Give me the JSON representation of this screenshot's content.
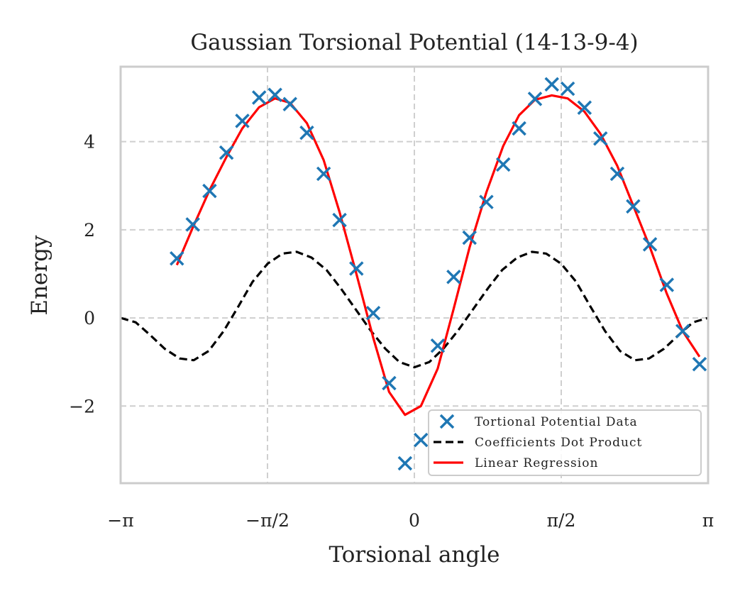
{
  "chart_data": {
    "type": "line",
    "title": "Gaussian Torsional Potential (14-13-9-4)",
    "xlabel": "Torsional angle",
    "ylabel": "Energy",
    "xlim": [
      -3.1416,
      3.1416
    ],
    "ylim": [
      -3.75,
      5.7
    ],
    "grid": true,
    "legend_position": "bottom-right",
    "x_ticks": [
      {
        "value": -3.1416,
        "label": "−π"
      },
      {
        "value": -1.5708,
        "label": "−π/2"
      },
      {
        "value": 0,
        "label": "0"
      },
      {
        "value": 1.5708,
        "label": "π/2"
      },
      {
        "value": 3.1416,
        "label": "π"
      }
    ],
    "y_ticks": [
      {
        "value": -2,
        "label": "−2"
      },
      {
        "value": 0,
        "label": "0"
      },
      {
        "value": 2,
        "label": "2"
      },
      {
        "value": 4,
        "label": "4"
      }
    ],
    "series": [
      {
        "name": "Tortional Potential Data",
        "kind": "scatter",
        "marker": "x",
        "color": "#1f77b4",
        "points": [
          [
            -2.54,
            1.35
          ],
          [
            -2.37,
            2.12
          ],
          [
            -2.19,
            2.88
          ],
          [
            -2.01,
            3.75
          ],
          [
            -1.84,
            4.47
          ],
          [
            -1.66,
            5.0
          ],
          [
            -1.49,
            5.06
          ],
          [
            -1.33,
            4.85
          ],
          [
            -1.15,
            4.2
          ],
          [
            -0.97,
            3.27
          ],
          [
            -0.8,
            2.22
          ],
          [
            -0.62,
            1.12
          ],
          [
            -0.44,
            0.11
          ],
          [
            -0.27,
            -1.48
          ],
          [
            -0.1,
            -3.3
          ],
          [
            0.07,
            -2.77
          ],
          [
            0.25,
            -0.63
          ],
          [
            0.42,
            0.93
          ],
          [
            0.59,
            1.82
          ],
          [
            0.77,
            2.63
          ],
          [
            0.95,
            3.48
          ],
          [
            1.12,
            4.3
          ],
          [
            1.29,
            4.97
          ],
          [
            1.47,
            5.3
          ],
          [
            1.64,
            5.2
          ],
          [
            1.82,
            4.77
          ],
          [
            1.99,
            4.07
          ],
          [
            2.17,
            3.27
          ],
          [
            2.34,
            2.53
          ],
          [
            2.52,
            1.67
          ],
          [
            2.7,
            0.75
          ],
          [
            2.87,
            -0.3
          ],
          [
            3.05,
            -1.05
          ]
        ]
      },
      {
        "name": "Coefficients Dot Product",
        "kind": "line",
        "style": "dashed",
        "color": "#000000",
        "points": [
          [
            -3.14,
            0.0
          ],
          [
            -2.98,
            -0.1
          ],
          [
            -2.83,
            -0.38
          ],
          [
            -2.67,
            -0.7
          ],
          [
            -2.51,
            -0.92
          ],
          [
            -2.36,
            -0.96
          ],
          [
            -2.2,
            -0.75
          ],
          [
            -2.04,
            -0.3
          ],
          [
            -1.88,
            0.27
          ],
          [
            -1.73,
            0.82
          ],
          [
            -1.57,
            1.23
          ],
          [
            -1.41,
            1.46
          ],
          [
            -1.26,
            1.5
          ],
          [
            -1.1,
            1.37
          ],
          [
            -0.94,
            1.09
          ],
          [
            -0.79,
            0.68
          ],
          [
            -0.63,
            0.2
          ],
          [
            -0.47,
            -0.28
          ],
          [
            -0.31,
            -0.7
          ],
          [
            -0.16,
            -1.0
          ],
          [
            0.0,
            -1.12
          ],
          [
            0.16,
            -1.0
          ],
          [
            0.31,
            -0.7
          ],
          [
            0.47,
            -0.28
          ],
          [
            0.63,
            0.2
          ],
          [
            0.79,
            0.68
          ],
          [
            0.94,
            1.09
          ],
          [
            1.1,
            1.37
          ],
          [
            1.26,
            1.5
          ],
          [
            1.41,
            1.46
          ],
          [
            1.57,
            1.23
          ],
          [
            1.73,
            0.82
          ],
          [
            1.88,
            0.27
          ],
          [
            2.04,
            -0.3
          ],
          [
            2.2,
            -0.75
          ],
          [
            2.36,
            -0.96
          ],
          [
            2.51,
            -0.92
          ],
          [
            2.67,
            -0.7
          ],
          [
            2.83,
            -0.38
          ],
          [
            2.98,
            -0.1
          ],
          [
            3.14,
            0.0
          ]
        ]
      },
      {
        "name": "Linear Regression",
        "kind": "line",
        "style": "solid",
        "color": "#ff0000",
        "points": [
          [
            -2.54,
            1.2
          ],
          [
            -2.37,
            2.05
          ],
          [
            -2.19,
            2.9
          ],
          [
            -2.01,
            3.65
          ],
          [
            -1.84,
            4.3
          ],
          [
            -1.66,
            4.78
          ],
          [
            -1.49,
            4.98
          ],
          [
            -1.33,
            4.88
          ],
          [
            -1.15,
            4.42
          ],
          [
            -0.97,
            3.58
          ],
          [
            -0.8,
            2.4
          ],
          [
            -0.62,
            1.0
          ],
          [
            -0.44,
            -0.45
          ],
          [
            -0.27,
            -1.68
          ],
          [
            -0.1,
            -2.2
          ],
          [
            0.07,
            -2.0
          ],
          [
            0.25,
            -1.15
          ],
          [
            0.42,
            0.2
          ],
          [
            0.59,
            1.6
          ],
          [
            0.77,
            2.85
          ],
          [
            0.95,
            3.9
          ],
          [
            1.12,
            4.6
          ],
          [
            1.29,
            4.95
          ],
          [
            1.47,
            5.05
          ],
          [
            1.64,
            4.98
          ],
          [
            1.82,
            4.68
          ],
          [
            1.99,
            4.18
          ],
          [
            2.17,
            3.45
          ],
          [
            2.34,
            2.55
          ],
          [
            2.52,
            1.6
          ],
          [
            2.7,
            0.55
          ],
          [
            2.87,
            -0.3
          ],
          [
            3.05,
            -0.88
          ]
        ]
      }
    ]
  }
}
